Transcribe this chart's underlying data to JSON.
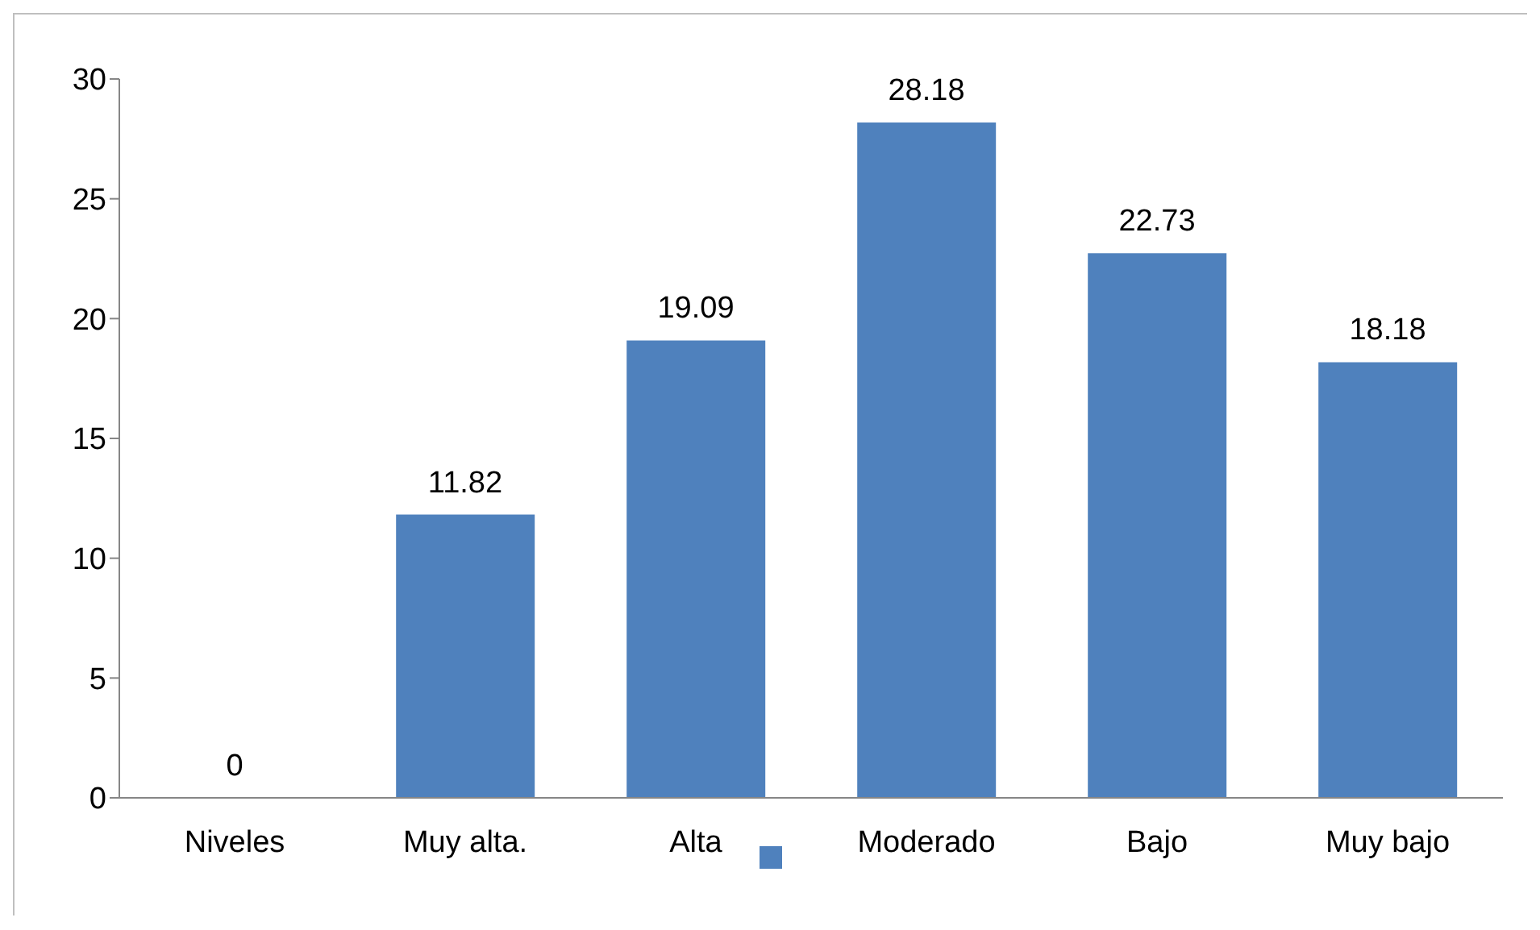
{
  "chart_data": {
    "type": "bar",
    "categories": [
      "Niveles",
      "Muy alta.",
      "Alta",
      "Moderado",
      "Bajo",
      "Muy bajo"
    ],
    "series": [
      {
        "color": "#4f81bd",
        "values": [
          0,
          11.82,
          19.09,
          28.18,
          22.73,
          18.18
        ]
      }
    ],
    "ylim": [
      0,
      30
    ],
    "yticks": [
      0,
      5,
      10,
      15,
      20,
      25,
      30
    ],
    "data_labels": true
  }
}
